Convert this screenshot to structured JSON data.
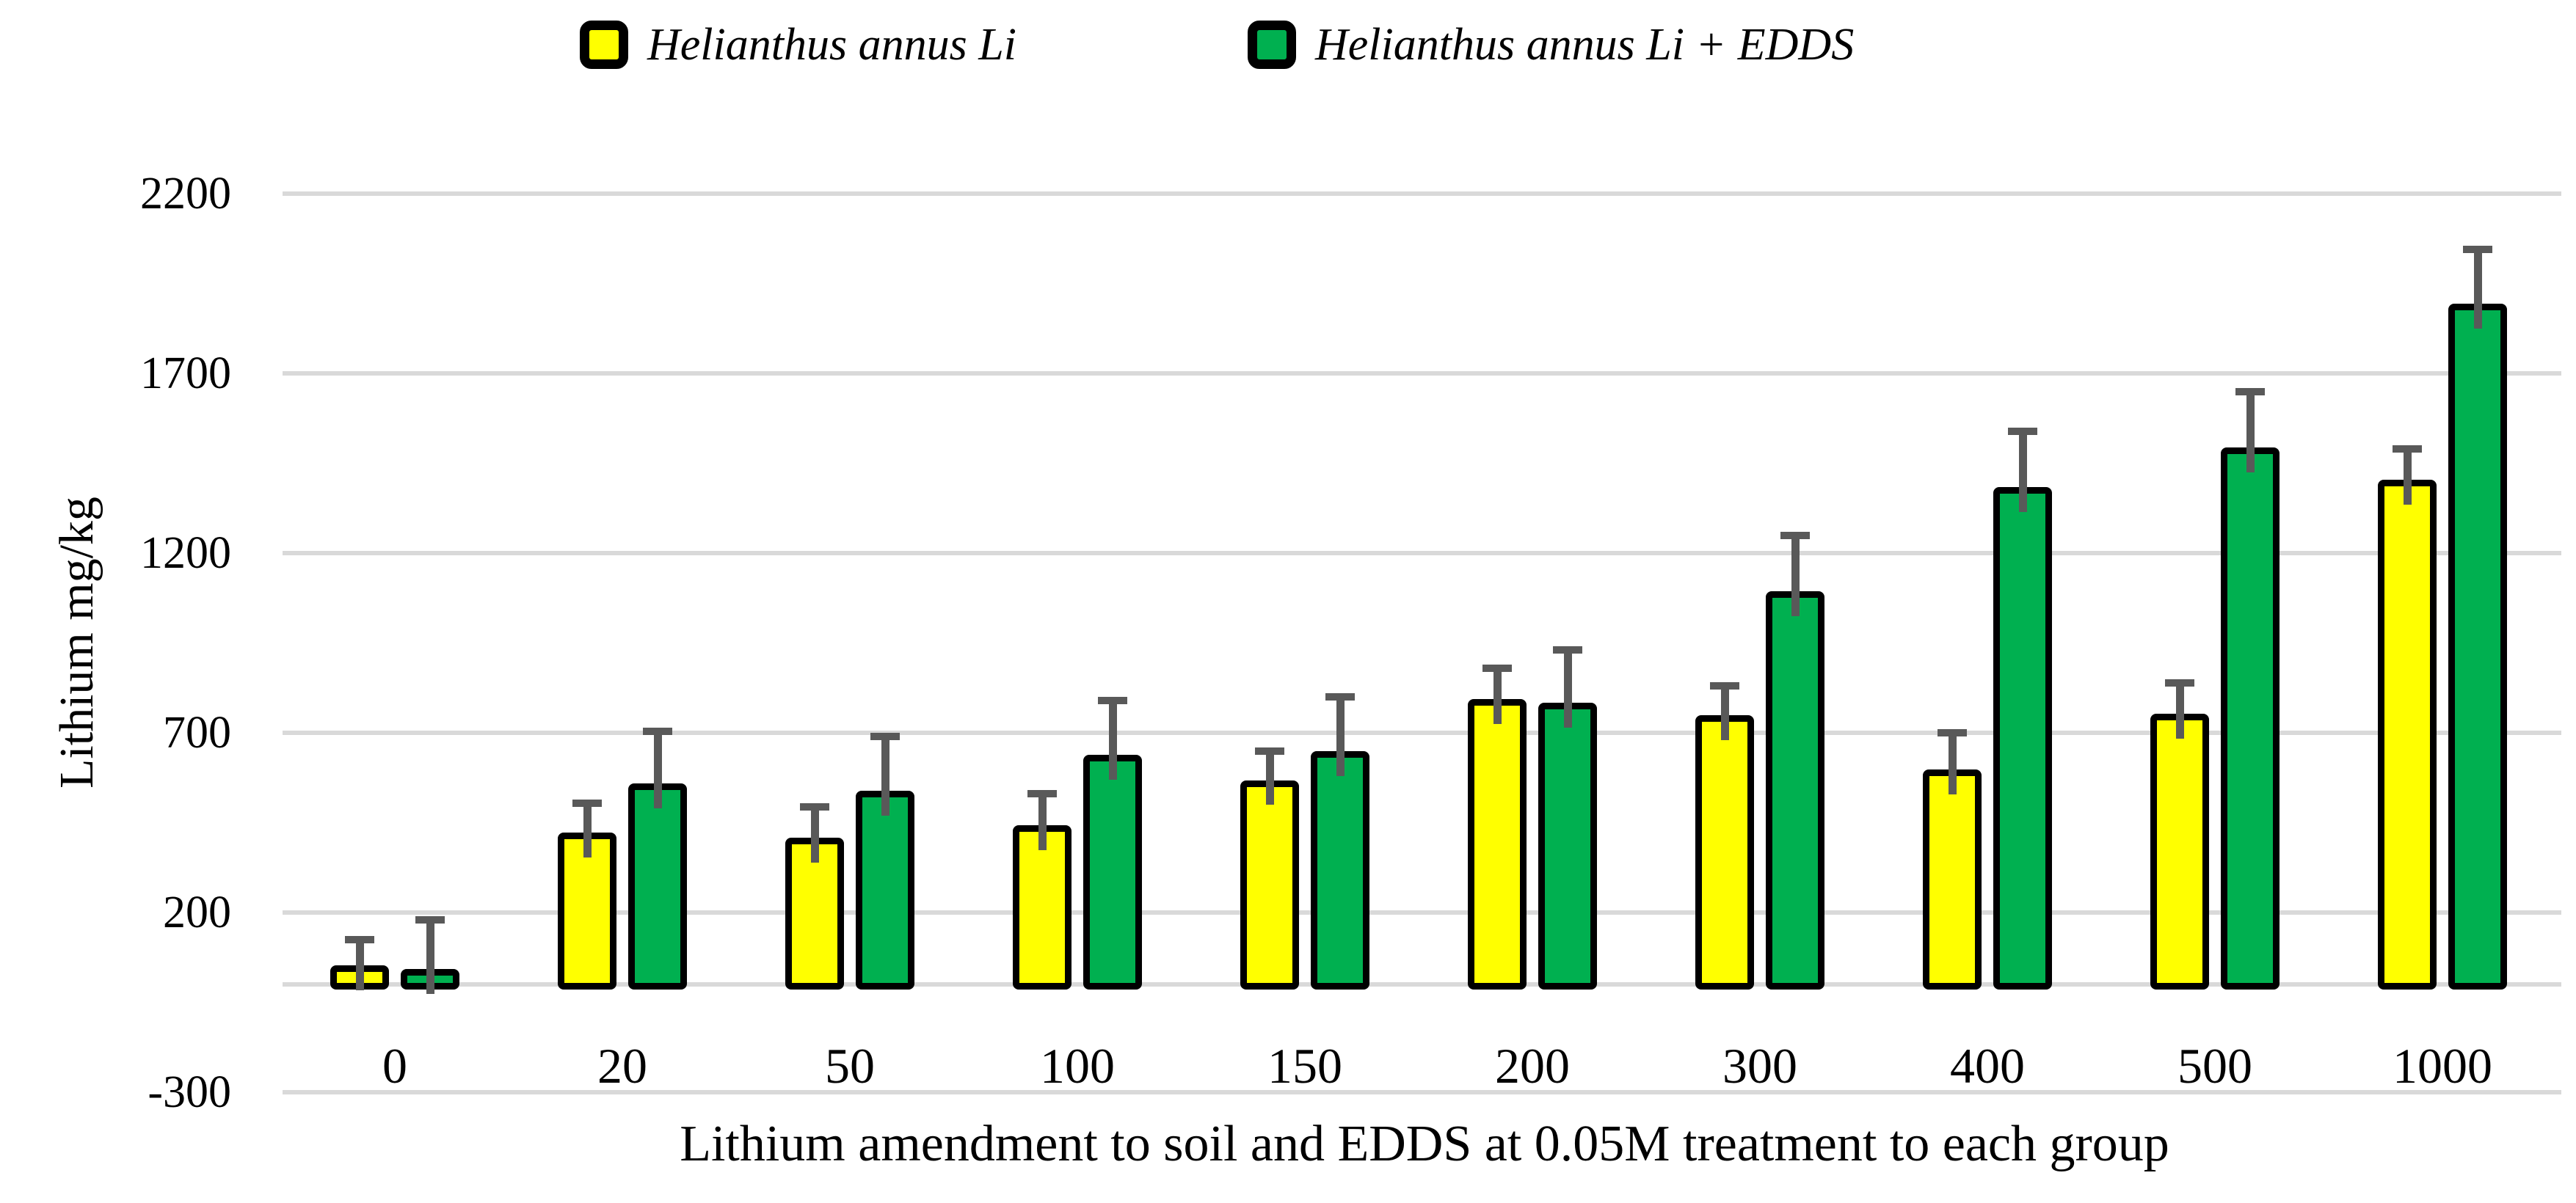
{
  "legend": {
    "items": [
      {
        "label": "Helianthus annus Li",
        "icon": "yellow-square-icon",
        "color": "#FFFF00"
      },
      {
        "label": "Helianthus annus Li + EDDS",
        "icon": "green-square-icon",
        "color": "#00B050"
      }
    ]
  },
  "y_axis": {
    "title": "Lithium mg/kg",
    "tick_labels": [
      "2200",
      "1700",
      "1200",
      "700",
      "200",
      "-300"
    ]
  },
  "x_axis": {
    "title": "Lithium amendment to soil and EDDS at 0.05M treatment to each group"
  },
  "chart_data": {
    "type": "bar",
    "title": "",
    "categories": [
      "0",
      "20",
      "50",
      "100",
      "150",
      "200",
      "300",
      "400",
      "500",
      "1000"
    ],
    "series": [
      {
        "name": "Helianthus annus Li",
        "color": "#FFFF00",
        "values": [
          35,
          405,
          390,
          425,
          550,
          775,
          730,
          580,
          735,
          1385
        ],
        "error_plus": [
          100,
          110,
          115,
          115,
          110,
          115,
          110,
          130,
          115,
          115
        ]
      },
      {
        "name": "Helianthus annus Li + EDDS",
        "color": "#00B050",
        "values": [
          25,
          540,
          520,
          620,
          630,
          765,
          1075,
          1365,
          1475,
          1875
        ],
        "error_plus": [
          165,
          175,
          180,
          180,
          180,
          175,
          185,
          185,
          185,
          180
        ]
      }
    ],
    "xlabel": "Lithium amendment to soil and EDDS at 0.05M treatment to each group",
    "ylabel": "Lithium mg/kg",
    "ylim": [
      -300,
      2350
    ],
    "yticks": [
      2200,
      1700,
      1200,
      700,
      200,
      -300
    ],
    "baseline": 0,
    "grid": true,
    "legend_position": "top-center",
    "colors": {
      "error_bar": "#595959",
      "gridline": "#D9D9D9",
      "bar_border": "#000000",
      "text": "#000000",
      "background": "#FFFFFF"
    }
  }
}
